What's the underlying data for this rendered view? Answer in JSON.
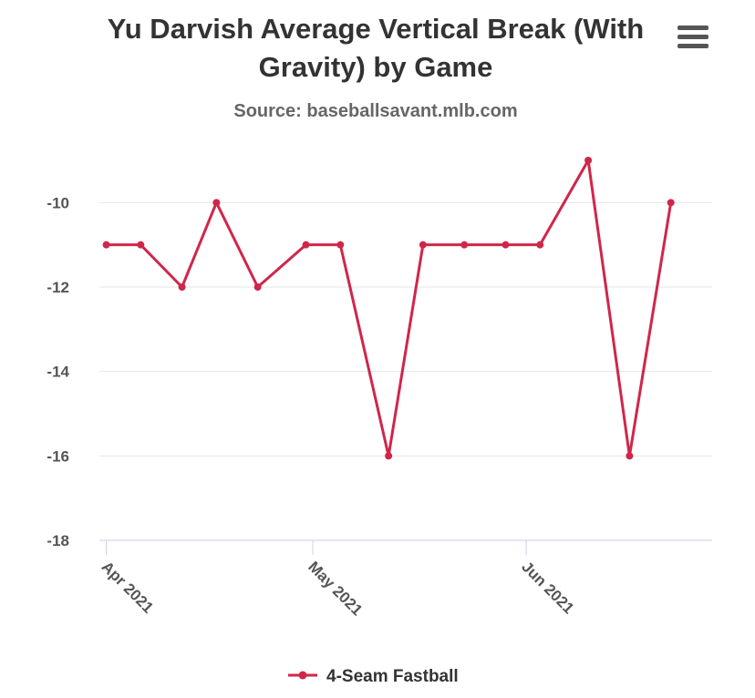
{
  "chart_data": {
    "type": "line",
    "title_line1": "Yu Darvish Average Vertical Break (With",
    "title_line2": "Gravity) by Game",
    "subtitle": "Source: baseballsavant.mlb.com",
    "ylim": [
      -18,
      -9
    ],
    "yticks": [
      -10,
      -12,
      -14,
      -16,
      -18
    ],
    "xlim": [
      "2021-03-31",
      "2021-06-28"
    ],
    "xticks": [
      {
        "date": "2021-04-01",
        "label": "Apr 2021"
      },
      {
        "date": "2021-05-01",
        "label": "May 2021"
      },
      {
        "date": "2021-06-01",
        "label": "Jun 2021"
      }
    ],
    "grid": true,
    "legend_position": "bottom-center",
    "series": [
      {
        "name": "4-Seam Fastball",
        "color": "#d0264a",
        "points": [
          {
            "x": "2021-04-01",
            "y": -11
          },
          {
            "x": "2021-04-06",
            "y": -11
          },
          {
            "x": "2021-04-12",
            "y": -12
          },
          {
            "x": "2021-04-17",
            "y": -10
          },
          {
            "x": "2021-04-23",
            "y": -12
          },
          {
            "x": "2021-04-30",
            "y": -11
          },
          {
            "x": "2021-05-05",
            "y": -11
          },
          {
            "x": "2021-05-12",
            "y": -16
          },
          {
            "x": "2021-05-17",
            "y": -11
          },
          {
            "x": "2021-05-23",
            "y": -11
          },
          {
            "x": "2021-05-29",
            "y": -11
          },
          {
            "x": "2021-06-03",
            "y": -11
          },
          {
            "x": "2021-06-10",
            "y": -9
          },
          {
            "x": "2021-06-16",
            "y": -16
          },
          {
            "x": "2021-06-22",
            "y": -10
          }
        ]
      }
    ]
  },
  "menu": {
    "icon": "hamburger-menu-icon"
  }
}
